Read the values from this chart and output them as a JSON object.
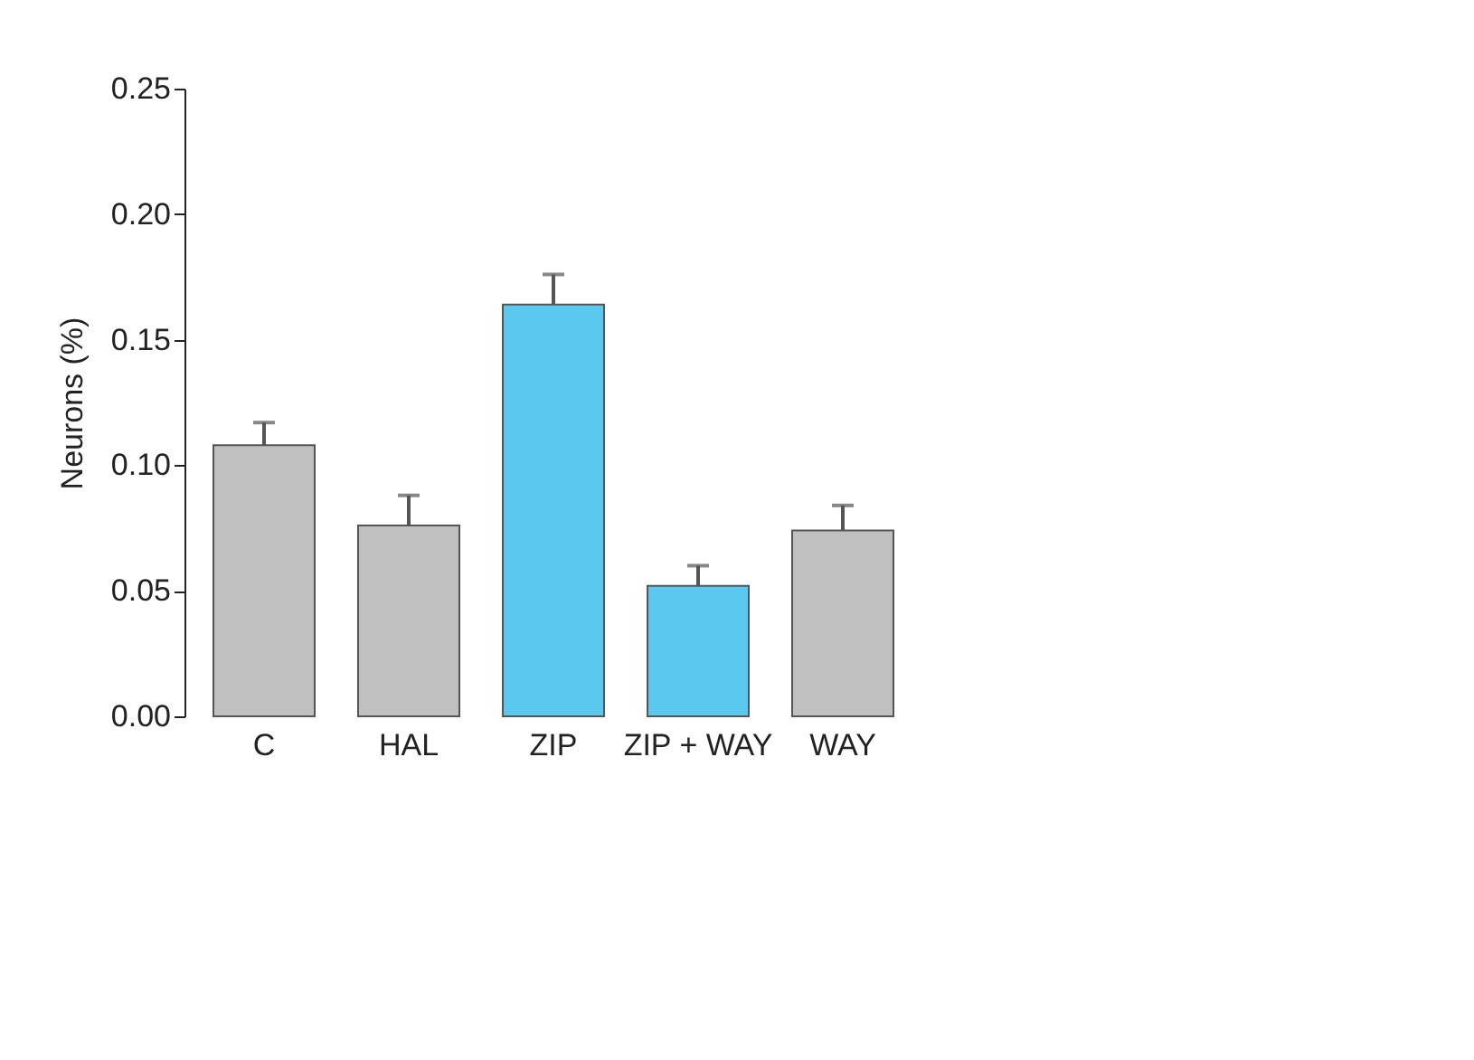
{
  "chart_data": {
    "type": "bar",
    "ylabel": "Neurons (%)",
    "categories": [
      "C",
      "HAL",
      "ZIP",
      "ZIP + WAY",
      "WAY"
    ],
    "values": [
      0.108,
      0.076,
      0.164,
      0.052,
      0.074
    ],
    "colors": [
      "#c0c0c0",
      "#c0c0c0",
      "#5bc8f0",
      "#5bc8f0",
      "#c0c0c0"
    ],
    "errors": [
      [
        0.108,
        0.117
      ],
      [
        0.076,
        0.088
      ],
      [
        0.164,
        0.176
      ],
      [
        0.052,
        0.06
      ],
      [
        0.074,
        0.084
      ]
    ],
    "ylim": [
      0,
      0.25
    ],
    "yticks": [
      {
        "value": 0,
        "label": "0.00"
      },
      0.05,
      {
        "value": 0.1,
        "label": "0.10"
      },
      0.15,
      {
        "value": 0.2,
        "label": "0.20"
      },
      0.25
    ],
    "grid": false
  }
}
